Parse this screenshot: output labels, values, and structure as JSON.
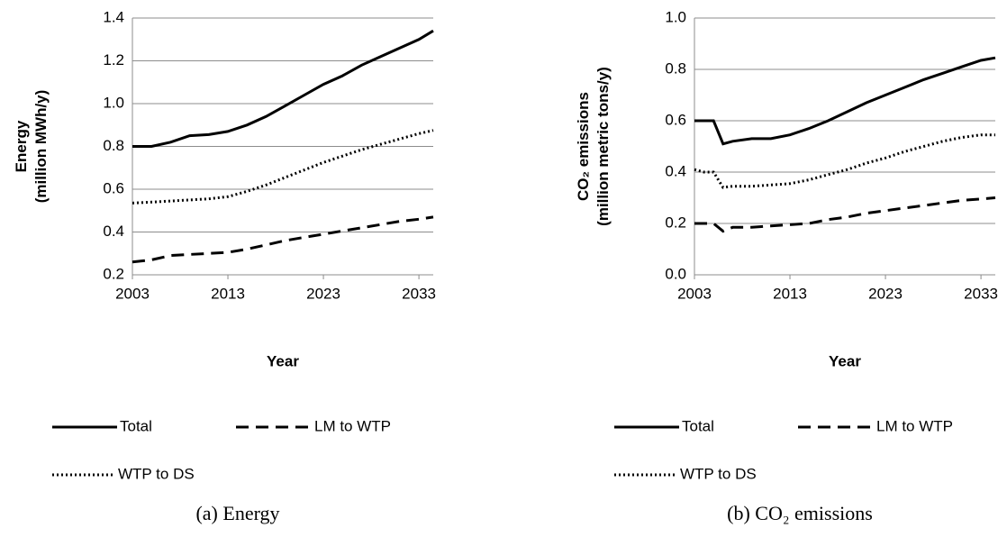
{
  "chart_data": [
    {
      "type": "line",
      "caption": "(a) Energy",
      "xlabel": "Year",
      "ylabel": [
        "Energy",
        "(million MWh/y)"
      ],
      "x": [
        2003,
        2005,
        2007,
        2009,
        2011,
        2013,
        2015,
        2017,
        2019,
        2021,
        2023,
        2025,
        2027,
        2029,
        2031,
        2033,
        2034.5
      ],
      "xlim": [
        2003,
        2034.5
      ],
      "xticks": [
        2003,
        2013,
        2023,
        2033
      ],
      "ylim": [
        0.2,
        1.4
      ],
      "yticks": [
        0.2,
        0.4,
        0.6,
        0.8,
        {
          "value": 1,
          "label": "1.0"
        },
        1.2,
        1.4
      ],
      "grid": true,
      "series": [
        {
          "name": "Total",
          "color": "#000000",
          "style": "solid",
          "values": [
            0.8,
            0.8,
            0.82,
            0.85,
            0.855,
            0.87,
            0.9,
            0.94,
            0.99,
            1.04,
            1.09,
            1.13,
            1.18,
            1.22,
            1.26,
            1.3,
            1.34
          ]
        },
        {
          "name": "LM to WTP",
          "color": "#000000",
          "style": "dashed",
          "values": [
            0.26,
            0.27,
            0.29,
            0.295,
            0.3,
            0.305,
            0.32,
            0.34,
            0.36,
            0.375,
            0.39,
            0.405,
            0.42,
            0.435,
            0.45,
            0.46,
            0.47
          ]
        },
        {
          "name": "WTP to DS",
          "color": "#000000",
          "style": "dotted",
          "values": [
            0.535,
            0.54,
            0.545,
            0.55,
            0.555,
            0.565,
            0.59,
            0.62,
            0.655,
            0.69,
            0.725,
            0.755,
            0.785,
            0.81,
            0.835,
            0.86,
            0.875
          ]
        }
      ]
    },
    {
      "type": "line",
      "caption": "(b) CO₂ emissions",
      "xlabel": "Year",
      "ylabel": [
        "CO₂ emissions",
        "(million metric tons/y)"
      ],
      "x": [
        2003,
        2004,
        2005,
        2006,
        2007,
        2009,
        2011,
        2013,
        2015,
        2017,
        2019,
        2021,
        2023,
        2025,
        2027,
        2029,
        2031,
        2033,
        2034.5
      ],
      "xlim": [
        2003,
        2034.5
      ],
      "xticks": [
        2003,
        2013,
        2023,
        2033
      ],
      "ylim": [
        0,
        1
      ],
      "yticks": [
        {
          "value": 0,
          "label": "0.0"
        },
        0.2,
        0.4,
        0.6,
        0.8,
        {
          "value": 1,
          "label": "1.0"
        }
      ],
      "grid": true,
      "series": [
        {
          "name": "Total",
          "color": "#000000",
          "style": "solid",
          "values": [
            0.6,
            0.6,
            0.6,
            0.51,
            0.52,
            0.53,
            0.53,
            0.545,
            0.57,
            0.6,
            0.635,
            0.67,
            0.7,
            0.73,
            0.76,
            0.785,
            0.81,
            0.835,
            0.845
          ]
        },
        {
          "name": "LM to WTP",
          "color": "#000000",
          "style": "dashed",
          "values": [
            0.2,
            0.2,
            0.2,
            0.17,
            0.185,
            0.185,
            0.19,
            0.195,
            0.2,
            0.215,
            0.225,
            0.24,
            0.25,
            0.26,
            0.27,
            0.28,
            0.29,
            0.295,
            0.3
          ]
        },
        {
          "name": "WTP to DS",
          "color": "#000000",
          "style": "dotted",
          "values": [
            0.41,
            0.4,
            0.4,
            0.34,
            0.345,
            0.345,
            0.35,
            0.355,
            0.37,
            0.39,
            0.41,
            0.435,
            0.455,
            0.48,
            0.5,
            0.52,
            0.535,
            0.545,
            0.545
          ]
        }
      ]
    }
  ]
}
